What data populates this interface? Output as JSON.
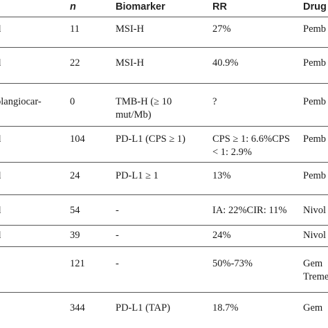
{
  "header": {
    "col_study": "",
    "col_n": "n",
    "col_biomarker": "Biomarker",
    "col_rr": "RR",
    "col_drug": "Drug"
  },
  "rows": [
    {
      "study": "d",
      "n": "11",
      "biomarker": "MSI-H",
      "rr": "27%",
      "rr2": "",
      "drug": "Pemb",
      "drug2": ""
    },
    {
      "study": "d",
      "n": "22",
      "biomarker": "MSI-H",
      "rr": "40.9%",
      "rr2": "",
      "drug": "Pemb",
      "drug2": ""
    },
    {
      "study": "olangiocar-",
      "n": "0",
      "biomarker": "TMB-H (≥ 10",
      "biomarker2": "mut/Mb)",
      "rr": "?",
      "rr2": "",
      "drug": "Pemb",
      "drug2": ""
    },
    {
      "study": "d",
      "n": "104",
      "biomarker": "PD-L1 (CPS ≥ 1)",
      "rr": "CPS ≥ 1: 6.6%CPS",
      "rr2": "< 1: 2.9%",
      "drug": "Pemb",
      "drug2": ""
    },
    {
      "study": "d",
      "n": "24",
      "biomarker": "PD-L1 ≥ 1",
      "rr": "13%",
      "rr2": "",
      "drug": "Pemb",
      "drug2": ""
    },
    {
      "study": "d",
      "n": "54",
      "biomarker": "-",
      "rr": "IA: 22%CIR: 11%",
      "rr2": "",
      "drug": "Nivol",
      "drug2": ""
    },
    {
      "study": "d",
      "n": "39",
      "biomarker": "-",
      "rr": "24%",
      "rr2": "",
      "drug": "Nivol",
      "drug2": ""
    },
    {
      "study": "",
      "n": "121",
      "biomarker": "-",
      "rr": "50%-73%",
      "rr2": "",
      "drug": "Gem",
      "drug2": "Treme"
    },
    {
      "study": "",
      "n": "344",
      "biomarker": "PD-L1 (TAP)",
      "rr": "18.7%",
      "rr2": "",
      "drug": "Gem",
      "drug2": ""
    }
  ]
}
